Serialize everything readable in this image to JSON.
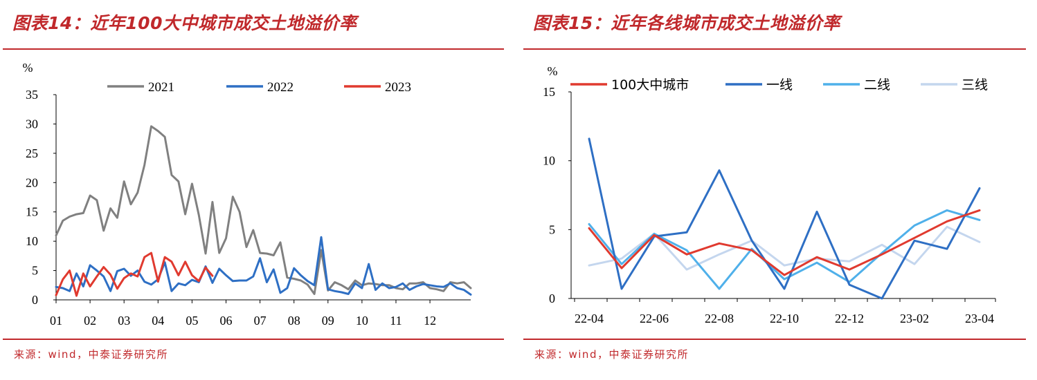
{
  "charts": [
    {
      "title": "图表14：近年100大中城市成交土地溢价率",
      "source": "来源：wind，中泰证券研究所"
    },
    {
      "title": "图表15：近年各线城市成交土地溢价率",
      "source": "来源：wind，中泰证券研究所"
    }
  ],
  "chart_data": [
    {
      "type": "line",
      "ylabel": "%",
      "ylim": [
        0,
        35
      ],
      "yticks": [
        0,
        5,
        10,
        15,
        20,
        25,
        30,
        35
      ],
      "xlim": [
        0,
        12.2
      ],
      "xticks": [
        "01",
        "02",
        "03",
        "04",
        "05",
        "06",
        "07",
        "08",
        "09",
        "10",
        "11",
        "12"
      ],
      "grid": false,
      "legend": "top",
      "series": [
        {
          "name": "2021",
          "color": "#808080",
          "x": [
            0,
            0.2,
            0.4,
            0.6,
            0.8,
            1.0,
            1.2,
            1.4,
            1.6,
            1.8,
            2.0,
            2.2,
            2.4,
            2.6,
            2.8,
            3.0,
            3.2,
            3.4,
            3.6,
            3.8,
            4.0,
            4.2,
            4.4,
            4.6,
            4.8,
            5.0,
            5.2,
            5.4,
            5.6,
            5.8,
            6.0,
            6.2,
            6.4,
            6.6,
            6.8,
            7.0,
            7.2,
            7.4,
            7.6,
            7.8,
            8.0,
            8.2,
            8.4,
            8.6,
            8.8,
            9.0,
            9.2,
            9.4,
            9.6,
            9.8,
            10.0,
            10.2,
            10.4,
            10.6,
            10.8,
            11.0,
            11.2,
            11.4,
            11.6,
            11.8,
            12.0,
            12.2
          ],
          "y": [
            11,
            13.5,
            14.2,
            14.6,
            14.8,
            17.8,
            17,
            11.8,
            15.6,
            14,
            20.2,
            16.3,
            18.3,
            23,
            29.6,
            28.8,
            27.8,
            21.3,
            20.2,
            14.6,
            19.8,
            14.5,
            7.9,
            16.7,
            8,
            10.5,
            17.6,
            15,
            9,
            11.9,
            8,
            7.9,
            7.6,
            9.8,
            3.8,
            3.6,
            3.3,
            2.6,
            1,
            8.5,
            1.6,
            3,
            2.5,
            1.8,
            3.3,
            2.5,
            2.8,
            2.7,
            2.5,
            2.5,
            2,
            1.8,
            2.8,
            2.8,
            3,
            2,
            1.8,
            1.5,
            3,
            2.8,
            3,
            2
          ]
        },
        {
          "name": "2022",
          "color": "#2e6fc4",
          "x": [
            0,
            0.2,
            0.4,
            0.6,
            0.8,
            1.0,
            1.2,
            1.4,
            1.6,
            1.8,
            2.0,
            2.2,
            2.4,
            2.6,
            2.8,
            3.0,
            3.2,
            3.4,
            3.6,
            3.8,
            4.0,
            4.2,
            4.4,
            4.6,
            4.8,
            5.0,
            5.2,
            5.4,
            5.6,
            5.8,
            6.0,
            6.2,
            6.4,
            6.6,
            6.8,
            7.0,
            7.2,
            7.4,
            7.6,
            7.8,
            8.0,
            8.2,
            8.4,
            8.6,
            8.8,
            9.0,
            9.2,
            9.4,
            9.6,
            9.8,
            10.0,
            10.2,
            10.4,
            10.6,
            10.8,
            11.0,
            11.2,
            11.4,
            11.6,
            11.8,
            12.0,
            12.2
          ],
          "y": [
            2.2,
            2,
            1.5,
            4.5,
            2.3,
            5.9,
            5,
            4,
            1.5,
            4.9,
            5.3,
            4.1,
            5,
            3.1,
            2.6,
            3.5,
            6.4,
            1.5,
            2.8,
            2.5,
            3.4,
            3,
            5.7,
            2.9,
            5.3,
            4.2,
            3.2,
            3.3,
            3.3,
            4,
            7.1,
            3,
            5.2,
            1.2,
            2,
            5.4,
            4.2,
            3.2,
            2.5,
            10.7,
            1.8,
            1.5,
            1.3,
            1,
            2.8,
            2,
            6.1,
            1.7,
            2.8,
            2,
            2.2,
            2.8,
            1.7,
            2.3,
            2.7,
            2.5,
            2.3,
            2.2,
            2.8,
            2,
            1.7,
            0.9
          ]
        },
        {
          "name": "2023",
          "color": "#e03a2f",
          "x": [
            0,
            0.2,
            0.4,
            0.6,
            0.8,
            1.0,
            1.2,
            1.4,
            1.6,
            1.8,
            2.0,
            2.2,
            2.4,
            2.6,
            2.8,
            3.0,
            3.2,
            3.4,
            3.6,
            3.8,
            4.0,
            4.2,
            4.4,
            4.6
          ],
          "y": [
            0.8,
            3.5,
            5,
            0.7,
            4.5,
            2.3,
            4,
            5.6,
            4.3,
            1.9,
            3.7,
            4.5,
            4,
            7.3,
            8,
            3.1,
            7.3,
            6.5,
            4.2,
            6.5,
            4.2,
            3.2,
            5.5,
            4.1
          ]
        }
      ]
    },
    {
      "type": "line",
      "ylabel": "%",
      "ylim": [
        0,
        15
      ],
      "yticks": [
        0,
        5,
        10,
        15
      ],
      "categories": [
        "22-04",
        "22-05",
        "22-06",
        "22-07",
        "22-08",
        "22-09",
        "22-10",
        "22-11",
        "22-12",
        "23-01",
        "23-02",
        "23-03",
        "23-04"
      ],
      "xtick_labels": [
        "22-04",
        "22-06",
        "22-08",
        "22-10",
        "22-12",
        "23-02",
        "23-04"
      ],
      "grid": false,
      "legend": "top",
      "series": [
        {
          "name": "100大中城市",
          "color": "#e03a2f",
          "values": [
            5.1,
            2.2,
            4.6,
            3.2,
            4,
            3.5,
            1.7,
            3,
            2.1,
            3.2,
            4.4,
            5.6,
            6.4
          ]
        },
        {
          "name": "一线",
          "color": "#2e6fc4",
          "values": [
            11.6,
            0.7,
            4.5,
            4.8,
            9.3,
            4.2,
            0.7,
            6.3,
            1,
            0,
            4.2,
            3.6,
            8
          ]
        },
        {
          "name": "二线",
          "color": "#4fb0ea",
          "values": [
            5.4,
            2.5,
            4.7,
            3.5,
            0.7,
            3.6,
            1.4,
            2.6,
            1.2,
            3.3,
            5.3,
            6.4,
            5.7
          ]
        },
        {
          "name": "三线",
          "color": "#c4d6ee",
          "values": [
            2.4,
            2.9,
            4.7,
            2.1,
            3.2,
            4.2,
            2.4,
            2.9,
            2.7,
            3.9,
            2.5,
            5.2,
            4.1
          ]
        }
      ]
    }
  ]
}
